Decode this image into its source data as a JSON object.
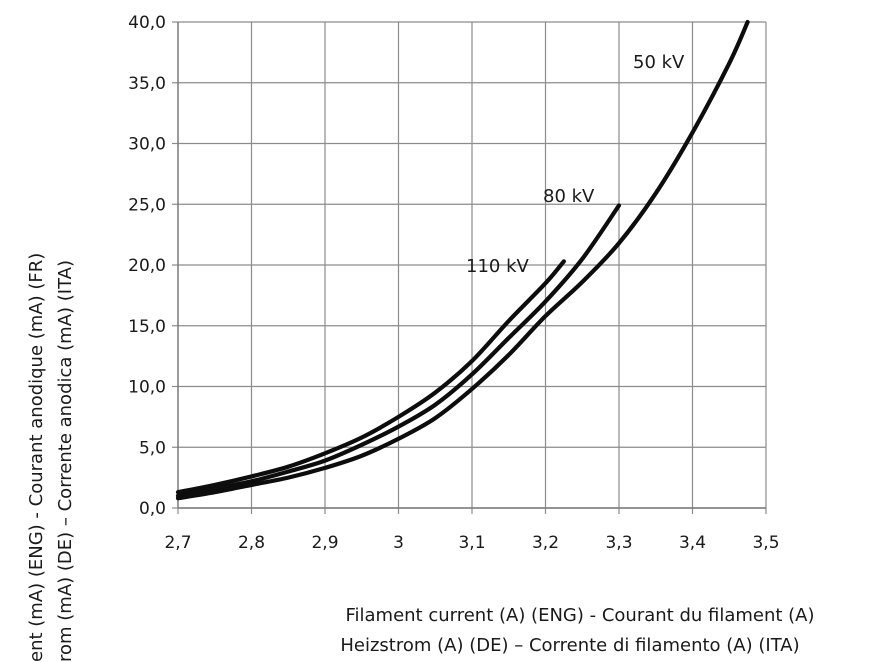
{
  "chart_data": {
    "type": "line",
    "xlabel_lines": [
      "Filament current (A) (ENG) - Courant du filament (A)",
      "Heizstrom (A) (DE) – Corrente di filamento (A) (ITA)"
    ],
    "ylabel_lines": [
      "ent (mA) (ENG) - Courant anodique (mA) (FR)",
      "rom (mA) (DE) – Corrente anodica (mA) (ITA)"
    ],
    "xlim": [
      2.7,
      3.5
    ],
    "ylim": [
      0,
      40
    ],
    "x_ticks": [
      2.7,
      2.8,
      2.9,
      3.0,
      3.1,
      3.2,
      3.3,
      3.4,
      3.5
    ],
    "x_tick_labels": [
      "2,7",
      "2,8",
      "2,9",
      "3",
      "3,1",
      "3,2",
      "3,3",
      "3,4",
      "3,5"
    ],
    "y_ticks": [
      0,
      5,
      10,
      15,
      20,
      25,
      30,
      35,
      40
    ],
    "y_tick_labels": [
      "0,0",
      "5,0",
      "10,0",
      "15,0",
      "20,0",
      "25,0",
      "30,0",
      "35,0",
      "40,0"
    ],
    "grid": true,
    "series": [
      {
        "name": "110 kV",
        "x": [
          2.7,
          2.75,
          2.8,
          2.85,
          2.9,
          2.95,
          3.0,
          3.05,
          3.1,
          3.15,
          3.2,
          3.225
        ],
        "y": [
          1.3,
          1.9,
          2.6,
          3.4,
          4.5,
          5.8,
          7.5,
          9.5,
          12.1,
          15.4,
          18.5,
          20.3
        ]
      },
      {
        "name": "80 kV",
        "x": [
          2.7,
          2.75,
          2.8,
          2.85,
          2.9,
          2.95,
          3.0,
          3.05,
          3.1,
          3.15,
          3.2,
          3.25,
          3.3
        ],
        "y": [
          1.0,
          1.6,
          2.2,
          3.0,
          3.9,
          5.2,
          6.7,
          8.5,
          11.0,
          14.0,
          17.0,
          20.5,
          24.9
        ]
      },
      {
        "name": "50 kV",
        "x": [
          2.7,
          2.75,
          2.8,
          2.85,
          2.9,
          2.95,
          3.0,
          3.05,
          3.1,
          3.15,
          3.2,
          3.25,
          3.3,
          3.35,
          3.4,
          3.45,
          3.475
        ],
        "y": [
          0.8,
          1.3,
          1.9,
          2.5,
          3.3,
          4.3,
          5.7,
          7.4,
          9.8,
          12.6,
          15.8,
          18.6,
          21.8,
          25.9,
          30.9,
          36.6,
          40.0
        ]
      }
    ]
  }
}
